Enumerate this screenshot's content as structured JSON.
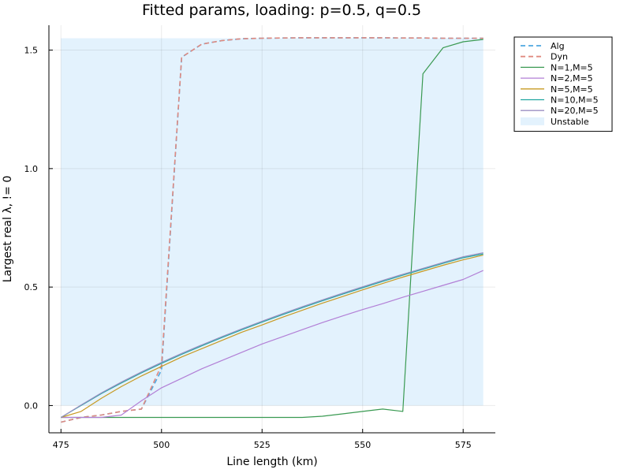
{
  "chart_data": {
    "type": "line",
    "title": "Fitted params, loading: p=0.5, q=0.5",
    "xlabel": "Line length (km)",
    "ylabel": "Largest real λ, != 0",
    "xlim": [
      472,
      583
    ],
    "ylim": [
      -0.115,
      1.605
    ],
    "xticks": [
      475,
      500,
      525,
      550,
      575
    ],
    "yticks": [
      0.0,
      0.5,
      1.0,
      1.5
    ],
    "ytick_labels": [
      "0.0",
      "0.5",
      "1.0",
      "1.5"
    ],
    "grid": true,
    "legend_position": "top-right-outside",
    "unstable_region": {
      "label": "Unstable",
      "x": [
        475,
        580
      ],
      "y": [
        0,
        1.55
      ],
      "color": "#e3f2fd"
    },
    "series": [
      {
        "name": "Alg",
        "style": "dashed",
        "color": "#4ea7e0",
        "x": [
          475,
          480,
          485,
          490,
          495,
          500,
          505,
          510,
          515,
          520,
          525,
          530,
          535,
          540,
          545,
          550,
          555,
          560,
          565,
          570,
          575,
          580
        ],
        "y": [
          -0.07,
          -0.05,
          -0.04,
          -0.025,
          -0.015,
          0.15,
          1.47,
          1.525,
          1.54,
          1.548,
          1.55,
          1.551,
          1.552,
          1.552,
          1.552,
          1.552,
          1.552,
          1.551,
          1.551,
          1.55,
          1.55,
          1.55
        ]
      },
      {
        "name": "Dyn",
        "style": "dashed",
        "color": "#e08a80",
        "x": [
          475,
          480,
          485,
          490,
          495,
          500,
          505,
          510,
          515,
          520,
          525,
          530,
          535,
          540,
          545,
          550,
          555,
          560,
          565,
          570,
          575,
          580
        ],
        "y": [
          -0.07,
          -0.05,
          -0.04,
          -0.025,
          -0.015,
          0.17,
          1.47,
          1.525,
          1.54,
          1.548,
          1.55,
          1.551,
          1.552,
          1.552,
          1.552,
          1.552,
          1.552,
          1.551,
          1.551,
          1.55,
          1.55,
          1.55
        ]
      },
      {
        "name": "N=1,M=5",
        "style": "solid",
        "color": "#3a9a52",
        "x": [
          475,
          480,
          485,
          490,
          495,
          500,
          505,
          510,
          515,
          520,
          525,
          530,
          535,
          540,
          545,
          550,
          555,
          560,
          565,
          570,
          575,
          580
        ],
        "y": [
          -0.05,
          -0.05,
          -0.05,
          -0.05,
          -0.05,
          -0.05,
          -0.05,
          -0.05,
          -0.05,
          -0.05,
          -0.05,
          -0.05,
          -0.05,
          -0.045,
          -0.035,
          -0.025,
          -0.015,
          -0.025,
          1.4,
          1.51,
          1.535,
          1.545
        ]
      },
      {
        "name": "N=2,M=5",
        "style": "solid",
        "color": "#b27fd6",
        "x": [
          475,
          480,
          485,
          490,
          495,
          500,
          505,
          510,
          515,
          520,
          525,
          530,
          535,
          540,
          545,
          550,
          555,
          560,
          565,
          570,
          575,
          580
        ],
        "y": [
          -0.05,
          -0.05,
          -0.05,
          -0.04,
          0.02,
          0.075,
          0.115,
          0.155,
          0.19,
          0.225,
          0.26,
          0.29,
          0.32,
          0.35,
          0.378,
          0.405,
          0.43,
          0.457,
          0.482,
          0.507,
          0.532,
          0.57
        ]
      },
      {
        "name": "N=5,M=5",
        "style": "solid",
        "color": "#c79a22",
        "x": [
          475,
          480,
          485,
          490,
          495,
          500,
          505,
          510,
          515,
          520,
          525,
          530,
          535,
          540,
          545,
          550,
          555,
          560,
          565,
          570,
          575,
          580
        ],
        "y": [
          -0.05,
          -0.025,
          0.03,
          0.08,
          0.125,
          0.165,
          0.205,
          0.24,
          0.275,
          0.31,
          0.34,
          0.372,
          0.402,
          0.432,
          0.46,
          0.488,
          0.515,
          0.542,
          0.567,
          0.592,
          0.615,
          0.635
        ]
      },
      {
        "name": "N=10,M=5",
        "style": "solid",
        "color": "#20a6a0",
        "x": [
          475,
          480,
          485,
          490,
          495,
          500,
          505,
          510,
          515,
          520,
          525,
          530,
          535,
          540,
          545,
          550,
          555,
          560,
          565,
          570,
          575,
          580
        ],
        "y": [
          -0.05,
          0.0,
          0.05,
          0.095,
          0.138,
          0.178,
          0.216,
          0.252,
          0.287,
          0.32,
          0.352,
          0.383,
          0.413,
          0.442,
          0.47,
          0.497,
          0.524,
          0.55,
          0.575,
          0.6,
          0.624,
          0.64
        ]
      },
      {
        "name": "N=20,M=5",
        "style": "solid",
        "color": "#9b8fc2",
        "x": [
          475,
          480,
          485,
          490,
          495,
          500,
          505,
          510,
          515,
          520,
          525,
          530,
          535,
          540,
          545,
          550,
          555,
          560,
          565,
          570,
          575,
          580
        ],
        "y": [
          -0.05,
          0.002,
          0.053,
          0.099,
          0.142,
          0.182,
          0.22,
          0.256,
          0.291,
          0.324,
          0.356,
          0.387,
          0.417,
          0.446,
          0.474,
          0.501,
          0.528,
          0.554,
          0.579,
          0.604,
          0.628,
          0.645
        ]
      }
    ]
  }
}
